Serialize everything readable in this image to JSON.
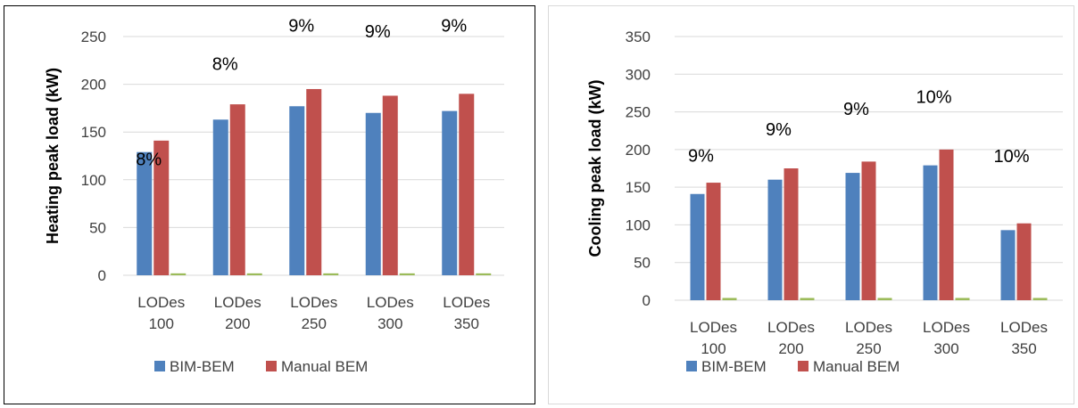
{
  "colors": {
    "bim": "#4f81bd",
    "manual": "#c0504d",
    "third": "#9bbb59",
    "grid": "#d9d9d9"
  },
  "chart_data": [
    {
      "type": "bar",
      "ylabel": "Heating peak load (kW)",
      "ylim": [
        0,
        250
      ],
      "yticks": [
        0,
        50,
        100,
        150,
        200,
        250
      ],
      "categories": [
        [
          "LODes",
          "100"
        ],
        [
          "LODes",
          "200"
        ],
        [
          "LODes",
          "250"
        ],
        [
          "LODes",
          "300"
        ],
        [
          "LODes",
          "350"
        ]
      ],
      "series": [
        {
          "name": "BIM-BEM",
          "values": [
            129,
            163,
            177,
            170,
            172
          ]
        },
        {
          "name": "Manual BEM",
          "values": [
            141,
            179,
            195,
            188,
            190
          ]
        },
        {
          "values": [
            2,
            2,
            2,
            2,
            2
          ]
        }
      ],
      "annotations": [
        "8%",
        "8%",
        "9%",
        "9%",
        "9%"
      ],
      "annotation_values": [
        115,
        215,
        255,
        249,
        255
      ],
      "grid": true,
      "legend": "bottom"
    },
    {
      "type": "bar",
      "ylabel": "Cooling peak load (kW)",
      "ylim": [
        0,
        350
      ],
      "yticks": [
        0,
        50,
        100,
        150,
        200,
        250,
        300,
        350
      ],
      "categories": [
        [
          "LODes",
          "100"
        ],
        [
          "LODes",
          "200"
        ],
        [
          "LODes",
          "250"
        ],
        [
          "LODes",
          "300"
        ],
        [
          "LODes",
          "350"
        ]
      ],
      "series": [
        {
          "name": "BIM-BEM",
          "values": [
            141,
            160,
            169,
            179,
            93
          ]
        },
        {
          "name": "Manual BEM",
          "values": [
            156,
            175,
            184,
            200,
            102
          ]
        },
        {
          "values": [
            3,
            3,
            3,
            3,
            3
          ]
        }
      ],
      "annotations": [
        "9%",
        "9%",
        "9%",
        "10%",
        "10%"
      ],
      "annotation_values": [
        184,
        219,
        246,
        262,
        183
      ],
      "grid": true,
      "legend": "bottom"
    }
  ]
}
